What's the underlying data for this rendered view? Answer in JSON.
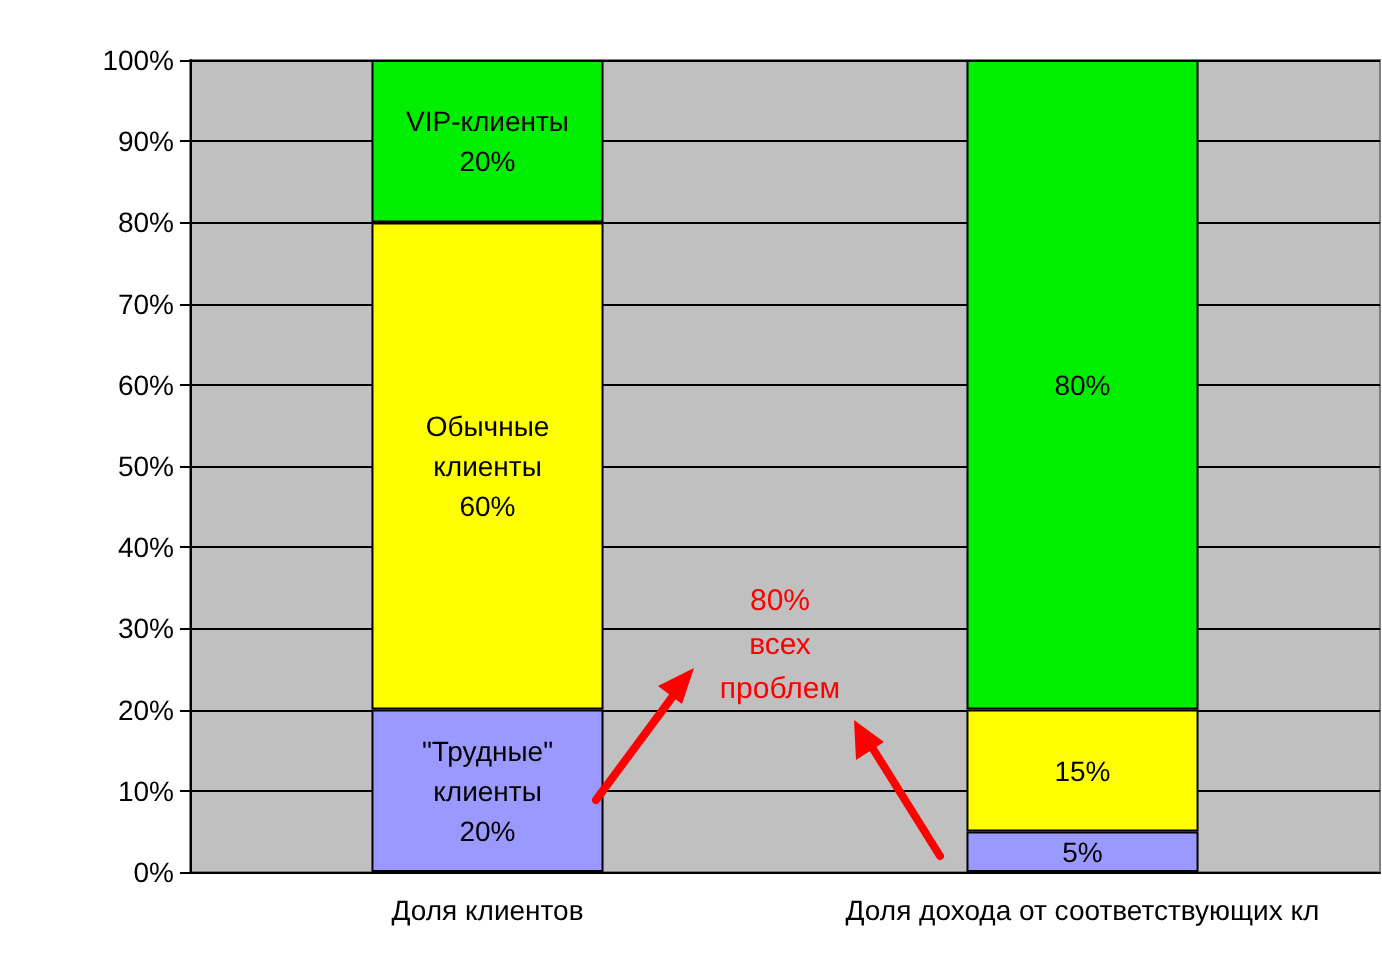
{
  "chart_data": {
    "type": "bar",
    "stacked": true,
    "categories": [
      "Доля клиентов",
      "Доля дохода от соответствующих кл"
    ],
    "series": [
      {
        "color": "#9999ff",
        "values": [
          20,
          5
        ],
        "value_labels": [
          "\"Трудные\" клиенты 20%",
          "5%"
        ]
      },
      {
        "color": "#ffff00",
        "values": [
          60,
          15
        ],
        "value_labels": [
          "Обычные клиенты 60%",
          "15%"
        ]
      },
      {
        "color": "#00ee00",
        "values": [
          20,
          80
        ],
        "value_labels": [
          "VIP-клиенты 20%",
          "80%"
        ]
      }
    ],
    "ylim": [
      0,
      100
    ],
    "yticks": [
      {
        "value": 0,
        "label": "0%"
      },
      {
        "value": 10,
        "label": "10%"
      },
      {
        "value": 20,
        "label": "20%"
      },
      {
        "value": 30,
        "label": "30%"
      },
      {
        "value": 40,
        "label": "40%"
      },
      {
        "value": 50,
        "label": "50%"
      },
      {
        "value": 60,
        "label": "60%"
      },
      {
        "value": 70,
        "label": "70%"
      },
      {
        "value": 80,
        "label": "80%"
      },
      {
        "value": 90,
        "label": "90%"
      },
      {
        "value": 100,
        "label": "100%"
      }
    ],
    "grid": "y",
    "annotations": [
      "80% всех проблем"
    ]
  }
}
